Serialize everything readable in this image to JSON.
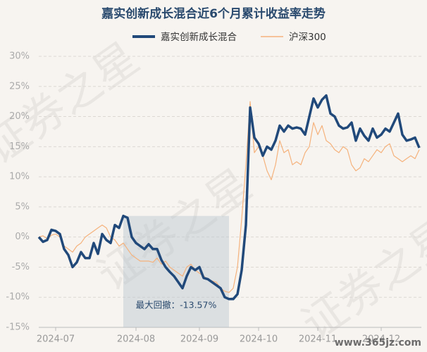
{
  "chart_data": {
    "type": "line",
    "title": "嘉实创新成长混合近6个月累计收益率走势",
    "watermark": "证券之星",
    "source_watermark": "www.365jz.com",
    "annotation": "最大回撤：-13.57%",
    "categories": [
      null,
      null,
      null,
      null,
      "2024-07",
      null,
      null,
      null,
      null,
      null,
      null,
      null,
      null,
      null,
      null,
      null,
      null,
      null,
      null,
      null,
      null,
      null,
      null,
      "2024-08",
      null,
      null,
      null,
      null,
      null,
      null,
      null,
      null,
      null,
      null,
      null,
      null,
      null,
      null,
      "2024-09",
      null,
      null,
      null,
      null,
      null,
      null,
      null,
      null,
      null,
      null,
      null,
      null,
      null,
      "2024-10",
      null,
      null,
      null,
      null,
      null,
      null,
      null,
      null,
      null,
      null,
      null,
      null,
      null,
      "2024-11",
      null,
      null,
      null,
      null,
      null,
      null,
      null,
      null,
      null,
      null,
      null,
      null,
      null,
      null,
      "2024-12",
      null,
      null,
      null,
      null,
      null,
      null,
      null,
      null,
      null
    ],
    "series": [
      {
        "name": "嘉实创新成长混合",
        "color": "#21497a",
        "width": 3.5,
        "values": [
          0,
          -0.8,
          -0.5,
          1.2,
          1,
          0.5,
          -2,
          -3,
          -5,
          -4.2,
          -2.5,
          -3.5,
          -3.5,
          -1,
          -2.8,
          0.5,
          -0.5,
          -1,
          2,
          1.5,
          3.5,
          3.2,
          0,
          -1,
          -1.5,
          -2,
          -1.2,
          -2,
          -2,
          -3.8,
          -5,
          -5.8,
          -6.5,
          -7.5,
          -8.5,
          -6.5,
          -5,
          -5.5,
          -5,
          -6.8,
          -7,
          -7.5,
          -8,
          -8.5,
          -10,
          -10.3,
          -10.3,
          -9.5,
          -5.5,
          2,
          21.5,
          16.5,
          15.5,
          13.5,
          15,
          14.5,
          16,
          18.5,
          17.5,
          18.5,
          18,
          18.2,
          18,
          17,
          20,
          23,
          21.5,
          22.8,
          23.5,
          20.5,
          20,
          18.5,
          18,
          18.2,
          19,
          16,
          18,
          16.8,
          16,
          18,
          16.5,
          17,
          18,
          17.5,
          19,
          20.5,
          17,
          16,
          16.2,
          16.5,
          14.8
        ]
      },
      {
        "name": "沪深300",
        "color": "#f5b27c",
        "width": 1.2,
        "values": [
          0,
          0.2,
          -0.3,
          0.3,
          0.5,
          0,
          -1.5,
          -2,
          -2.5,
          -1.5,
          -1,
          0,
          0.5,
          1,
          1.5,
          2,
          1.5,
          0,
          -0.5,
          -1.5,
          -1,
          -2,
          -3,
          -3.5,
          -4,
          -4,
          -4,
          -4.2,
          -3.5,
          -4.5,
          -4,
          -5,
          -5.5,
          -6,
          -6.5,
          -5,
          -4.5,
          -5.5,
          -6,
          -6.5,
          -7,
          -7.3,
          -7.5,
          -8.5,
          -9,
          -9.2,
          -8.5,
          -5,
          3,
          12,
          22.5,
          14,
          15,
          13.5,
          11,
          9.5,
          12,
          16,
          14,
          14.5,
          12,
          12.5,
          12,
          14,
          15,
          19,
          17,
          18.5,
          16,
          15.5,
          14.5,
          14,
          15,
          14.5,
          12,
          11,
          11.5,
          13,
          12.5,
          13.5,
          14.5,
          14,
          15,
          15.5,
          13.5,
          13,
          12.5,
          13,
          13.5,
          13,
          14.5
        ]
      }
    ],
    "ylim": [
      -15,
      30
    ],
    "yticks": [
      {
        "value": -15,
        "label": "-15%"
      },
      {
        "value": -10,
        "label": "-10%"
      },
      {
        "value": -5,
        "label": "-5%"
      },
      {
        "value": 0,
        "label": "0%"
      },
      {
        "value": 5,
        "label": "5%"
      },
      {
        "value": 10,
        "label": "10%"
      },
      {
        "value": 15,
        "label": "15%"
      },
      {
        "value": 20,
        "label": "20%"
      },
      {
        "value": 25,
        "label": "25%"
      },
      {
        "value": 30,
        "label": "30%"
      }
    ],
    "grid": true
  }
}
